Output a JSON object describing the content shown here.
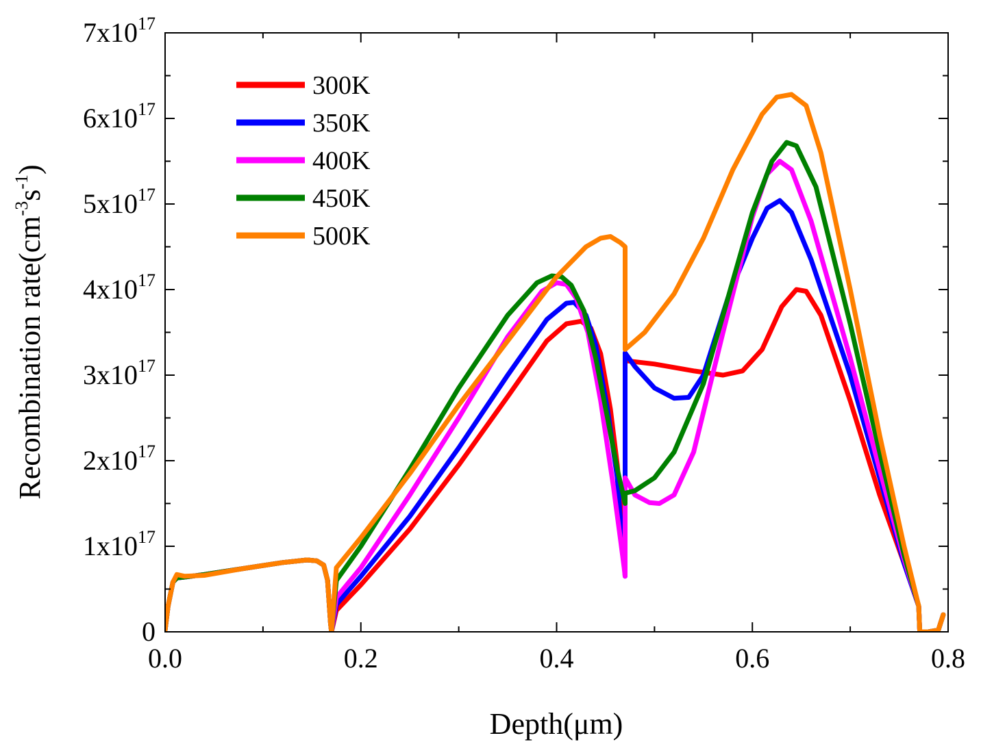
{
  "chart_data": {
    "type": "line",
    "title": "",
    "xlabel": "Depth(μm)",
    "ylabel_parts": [
      "Recombination rate(cm",
      "-3",
      "s",
      "-1",
      ")"
    ],
    "xlim": [
      0,
      0.8
    ],
    "ylim": [
      0,
      7e+17
    ],
    "x_ticks": [
      0.0,
      0.2,
      0.4,
      0.6,
      0.8
    ],
    "x_tick_labels": [
      "0.0",
      "0.2",
      "0.4",
      "0.6",
      "0.8"
    ],
    "y_ticks": [
      0,
      1e+17,
      2e+17,
      3e+17,
      4e+17,
      5e+17,
      6e+17,
      7e+17
    ],
    "y_tick_labels": [
      {
        "base": "0",
        "exp": ""
      },
      {
        "base": "1x10",
        "exp": "17"
      },
      {
        "base": "2x10",
        "exp": "17"
      },
      {
        "base": "3x10",
        "exp": "17"
      },
      {
        "base": "4x10",
        "exp": "17"
      },
      {
        "base": "5x10",
        "exp": "17"
      },
      {
        "base": "6x10",
        "exp": "17"
      },
      {
        "base": "7x10",
        "exp": "17"
      }
    ],
    "grid": false,
    "legend_position": "top-left",
    "series": [
      {
        "name": "300K",
        "color": "#ff0000",
        "x": [
          0,
          0.003,
          0.008,
          0.012,
          0.02,
          0.04,
          0.08,
          0.12,
          0.145,
          0.155,
          0.162,
          0.166,
          0.169,
          0.17,
          0.175,
          0.2,
          0.25,
          0.3,
          0.35,
          0.39,
          0.41,
          0.425,
          0.435,
          0.445,
          0.455,
          0.462,
          0.466,
          0.469,
          0.47,
          0.47,
          0.5,
          0.54,
          0.57,
          0.59,
          0.61,
          0.63,
          0.645,
          0.655,
          0.67,
          0.7,
          0.73,
          0.755,
          0.77,
          0.771,
          0.78,
          0.79,
          0.795
        ],
        "y": [
          2000000000000000.0,
          3e+16,
          5.8e+16,
          6.3e+16,
          6.4e+16,
          6.7e+16,
          7.4e+16,
          8.1e+16,
          8.4e+16,
          8.3e+16,
          7.8e+16,
          6e+16,
          1e+16,
          0.0,
          2.5e+16,
          5.5e+16,
          1.2e+17,
          1.95e+17,
          2.75e+17,
          3.4e+17,
          3.6e+17,
          3.63e+17,
          3.55e+17,
          3.25e+17,
          2.6e+17,
          1.95e+17,
          1.4e+17,
          9.5e+16,
          7.5e+16,
          3.17e+17,
          3.13e+17,
          3.05e+17,
          3e+17,
          3.05e+17,
          3.3e+17,
          3.8e+17,
          4e+17,
          3.98e+17,
          3.7e+17,
          2.7e+17,
          1.6e+17,
          8e+16,
          3e+16,
          0.0,
          0.0,
          2000000000000000.0,
          2e+16
        ]
      },
      {
        "name": "350K",
        "color": "#0000ff",
        "x": [
          0,
          0.003,
          0.008,
          0.012,
          0.02,
          0.04,
          0.08,
          0.12,
          0.145,
          0.155,
          0.162,
          0.166,
          0.169,
          0.17,
          0.175,
          0.2,
          0.25,
          0.3,
          0.35,
          0.39,
          0.41,
          0.418,
          0.43,
          0.44,
          0.452,
          0.462,
          0.466,
          0.469,
          0.47,
          0.47,
          0.48,
          0.5,
          0.52,
          0.535,
          0.55,
          0.575,
          0.6,
          0.615,
          0.628,
          0.64,
          0.66,
          0.7,
          0.73,
          0.755,
          0.77,
          0.771,
          0.78,
          0.79,
          0.795
        ],
        "y": [
          2000000000000000.0,
          3e+16,
          5.8e+16,
          6.3e+16,
          6.4e+16,
          6.7e+16,
          7.4e+16,
          8.1e+16,
          8.4e+16,
          8.3e+16,
          7.8e+16,
          6e+16,
          1e+16,
          0.0,
          3.2e+16,
          6.5e+16,
          1.35e+17,
          2.15e+17,
          3e+17,
          3.65e+17,
          3.84e+17,
          3.85e+17,
          3.7e+17,
          3.35e+17,
          2.6e+17,
          1.8e+17,
          1.2e+17,
          8e+16,
          6.5e+16,
          3.26e+17,
          3.1e+17,
          2.85e+17,
          2.73e+17,
          2.74e+17,
          3e+17,
          3.9e+17,
          4.6e+17,
          4.95e+17,
          5.04e+17,
          4.9e+17,
          4.35e+17,
          3e+17,
          1.8e+17,
          8e+16,
          3e+16,
          0.0,
          0.0,
          2000000000000000.0,
          2e+16
        ]
      },
      {
        "name": "400K",
        "color": "#ff00ff",
        "x": [
          0,
          0.003,
          0.008,
          0.012,
          0.02,
          0.04,
          0.08,
          0.12,
          0.145,
          0.155,
          0.162,
          0.166,
          0.169,
          0.17,
          0.175,
          0.2,
          0.25,
          0.3,
          0.35,
          0.385,
          0.4,
          0.41,
          0.42,
          0.432,
          0.445,
          0.458,
          0.465,
          0.469,
          0.47,
          0.47,
          0.48,
          0.495,
          0.505,
          0.52,
          0.54,
          0.57,
          0.6,
          0.615,
          0.628,
          0.64,
          0.66,
          0.7,
          0.73,
          0.755,
          0.77,
          0.771,
          0.78,
          0.79,
          0.795
        ],
        "y": [
          2000000000000000.0,
          3e+16,
          5.8e+16,
          6.3e+16,
          6.4e+16,
          6.7e+16,
          7.4e+16,
          8.1e+16,
          8.4e+16,
          8.3e+16,
          7.8e+16,
          6e+16,
          1e+16,
          0.0,
          4e+16,
          7.5e+16,
          1.6e+17,
          2.5e+17,
          3.45e+17,
          3.98e+17,
          4.08e+17,
          4.06e+17,
          3.9e+17,
          3.5e+17,
          2.7e+17,
          1.7e+17,
          1.1e+17,
          7.5e+16,
          6.5e+16,
          1.8e+17,
          1.6e+17,
          1.51e+17,
          1.5e+17,
          1.6e+17,
          2.1e+17,
          3.5e+17,
          4.85e+17,
          5.35e+17,
          5.5e+17,
          5.4e+17,
          4.8e+17,
          3.2e+17,
          1.9e+17,
          8.5e+16,
          3e+16,
          0.0,
          0.0,
          2000000000000000.0,
          2e+16
        ]
      },
      {
        "name": "450K",
        "color": "#008000",
        "x": [
          0,
          0.003,
          0.008,
          0.012,
          0.02,
          0.04,
          0.08,
          0.12,
          0.145,
          0.155,
          0.162,
          0.166,
          0.169,
          0.17,
          0.175,
          0.2,
          0.25,
          0.3,
          0.35,
          0.38,
          0.395,
          0.405,
          0.415,
          0.428,
          0.44,
          0.452,
          0.462,
          0.468,
          0.47,
          0.47,
          0.48,
          0.5,
          0.52,
          0.55,
          0.58,
          0.6,
          0.62,
          0.635,
          0.645,
          0.665,
          0.7,
          0.73,
          0.755,
          0.77,
          0.771,
          0.78,
          0.79,
          0.795
        ],
        "y": [
          2000000000000000.0,
          3e+16,
          5.8e+16,
          6.3e+16,
          6.4e+16,
          6.7e+16,
          7.4e+16,
          8.1e+16,
          8.4e+16,
          8.3e+16,
          7.8e+16,
          6e+16,
          1e+16,
          0.0,
          6e+16,
          1e+17,
          1.9e+17,
          2.85e+17,
          3.7e+17,
          4.08e+17,
          4.16e+17,
          4.15e+17,
          4.05e+17,
          3.75e+17,
          3.2e+17,
          2.5e+17,
          1.9e+17,
          1.6e+17,
          1.5e+17,
          1.62e+17,
          1.65e+17,
          1.8e+17,
          2.1e+17,
          2.9e+17,
          4.1e+17,
          4.9e+17,
          5.5e+17,
          5.72e+17,
          5.68e+17,
          5.2e+17,
          3.6e+17,
          2.1e+17,
          9e+16,
          3e+16,
          0.0,
          0.0,
          2000000000000000.0,
          2e+16
        ]
      },
      {
        "name": "500K",
        "color": "#ff8000",
        "x": [
          0,
          0.003,
          0.008,
          0.012,
          0.02,
          0.04,
          0.08,
          0.12,
          0.145,
          0.155,
          0.162,
          0.166,
          0.169,
          0.17,
          0.175,
          0.2,
          0.25,
          0.3,
          0.35,
          0.4,
          0.43,
          0.445,
          0.455,
          0.465,
          0.47,
          0.47,
          0.49,
          0.52,
          0.55,
          0.58,
          0.61,
          0.625,
          0.64,
          0.655,
          0.67,
          0.7,
          0.73,
          0.755,
          0.77,
          0.771,
          0.78,
          0.79,
          0.795
        ],
        "y": [
          2000000000000000.0,
          3e+16,
          5.8e+16,
          6.7e+16,
          6.5e+16,
          6.6e+16,
          7.4e+16,
          8.1e+16,
          8.4e+16,
          8.3e+16,
          7.8e+16,
          6e+16,
          1e+16,
          0.0,
          7.5e+16,
          1.1e+17,
          1.85e+17,
          2.65e+17,
          3.4e+17,
          4.15e+17,
          4.5e+17,
          4.6e+17,
          4.62e+17,
          4.55e+17,
          4.5e+17,
          3.3e+17,
          3.5e+17,
          3.95e+17,
          4.6e+17,
          5.4e+17,
          6.05e+17,
          6.25e+17,
          6.28e+17,
          6.15e+17,
          5.6e+17,
          4e+17,
          2.3e+17,
          1e+17,
          3e+16,
          0.0,
          0.0,
          2000000000000000.0,
          2e+16
        ]
      }
    ]
  }
}
